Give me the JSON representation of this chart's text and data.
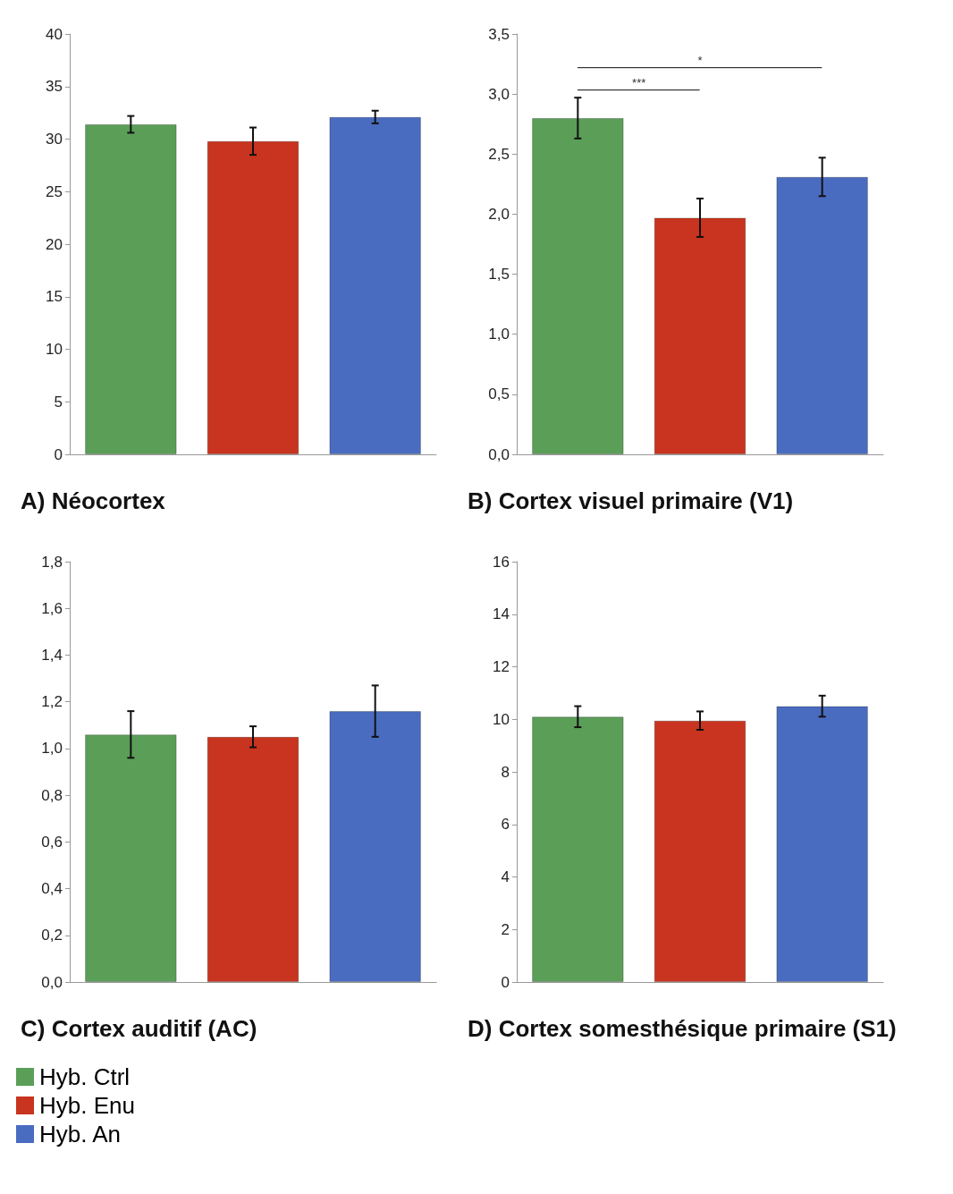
{
  "chart_data": [
    {
      "type": "bar",
      "title": "A) Néocortex",
      "categories": [
        null,
        null,
        null
      ],
      "ylim": [
        0,
        40
      ],
      "yticks": [
        0,
        5,
        10,
        15,
        20,
        25,
        30,
        35,
        40
      ],
      "grid": false,
      "series": [
        {
          "color": "#5b9e58",
          "values": [
            31.4,
            null,
            null
          ],
          "errors": [
            0.8,
            null,
            null
          ]
        },
        {
          "color": "#c8341f",
          "values": [
            null,
            29.8,
            null
          ],
          "errors": [
            null,
            1.3,
            null
          ]
        },
        {
          "color": "#4a6cc0",
          "values": [
            null,
            null,
            32.1
          ],
          "errors": [
            null,
            null,
            0.6
          ]
        }
      ]
    },
    {
      "type": "bar",
      "title": "B) Cortex visuel primaire (V1)",
      "categories": [
        null,
        null,
        null
      ],
      "ylim": [
        0,
        3.5
      ],
      "yticks": [
        {
          "value": 0,
          "label": "0,0"
        },
        {
          "value": 0.5,
          "label": "0,5"
        },
        {
          "value": 1,
          "label": "1,0"
        },
        {
          "value": 1.5,
          "label": "1,5"
        },
        {
          "value": 2,
          "label": "2,0"
        },
        {
          "value": 2.5,
          "label": "2,5"
        },
        {
          "value": 3,
          "label": "3,0"
        },
        {
          "value": 3.5,
          "label": "3,5"
        }
      ],
      "grid": false,
      "annotations": [
        "***",
        "*"
      ],
      "series": [
        {
          "color": "#5b9e58",
          "values": [
            2.8,
            null,
            null
          ],
          "errors": [
            0.17,
            null,
            null
          ]
        },
        {
          "color": "#c8341f",
          "values": [
            null,
            1.97,
            null
          ],
          "errors": [
            null,
            0.16,
            null
          ]
        },
        {
          "color": "#4a6cc0",
          "values": [
            null,
            null,
            2.31
          ],
          "errors": [
            null,
            null,
            0.16
          ]
        }
      ]
    },
    {
      "type": "bar",
      "title": "C) Cortex auditif (AC)",
      "categories": [
        null,
        null,
        null
      ],
      "ylim": [
        0,
        1.8
      ],
      "yticks": [
        {
          "value": 0,
          "label": "0,0"
        },
        {
          "value": 0.2,
          "label": "0,2"
        },
        {
          "value": 0.4,
          "label": "0,4"
        },
        {
          "value": 0.6,
          "label": "0,6"
        },
        {
          "value": 0.8,
          "label": "0,8"
        },
        {
          "value": 1,
          "label": "1,0"
        },
        {
          "value": 1.2,
          "label": "1,2"
        },
        {
          "value": 1.4,
          "label": "1,4"
        },
        {
          "value": 1.6,
          "label": "1,6"
        },
        {
          "value": 1.8,
          "label": "1,8"
        }
      ],
      "grid": false,
      "series": [
        {
          "color": "#5b9e58",
          "values": [
            1.06,
            null,
            null
          ],
          "errors": [
            0.1,
            null,
            null
          ]
        },
        {
          "color": "#c8341f",
          "values": [
            null,
            1.05,
            null
          ],
          "errors": [
            null,
            0.045,
            null
          ]
        },
        {
          "color": "#4a6cc0",
          "values": [
            null,
            null,
            1.16
          ],
          "errors": [
            null,
            null,
            0.11
          ]
        }
      ]
    },
    {
      "type": "bar",
      "title": "D) Cortex somesthésique primaire (S1)",
      "categories": [
        null,
        null,
        null
      ],
      "ylim": [
        0,
        16
      ],
      "yticks": [
        0,
        2,
        4,
        6,
        8,
        10,
        12,
        14,
        16
      ],
      "grid": false,
      "legend": "bottom left",
      "series": [
        {
          "name": "Hyb. Ctrl",
          "color": "#5b9e58",
          "values": [
            10.1,
            null,
            null
          ],
          "errors": [
            0.4,
            null,
            null
          ]
        },
        {
          "name": "Hyb. Enu",
          "color": "#c8341f",
          "values": [
            null,
            9.95,
            null
          ],
          "errors": [
            null,
            0.35,
            null
          ]
        },
        {
          "name": "Hyb. An",
          "color": "#4a6cc0",
          "values": [
            null,
            null,
            10.5
          ],
          "errors": [
            null,
            null,
            0.4
          ]
        }
      ]
    }
  ]
}
